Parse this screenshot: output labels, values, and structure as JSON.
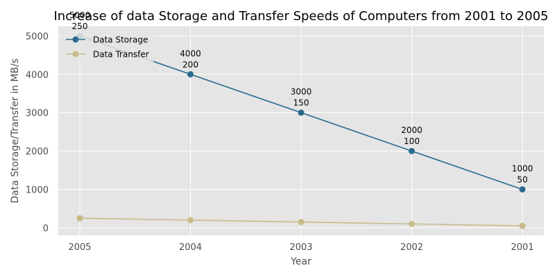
{
  "chart_data": {
    "type": "line",
    "title": "Increase of data Storage and Transfer Speeds of Computers from 2001 to 2005",
    "xlabel": "Year",
    "ylabel": "Data Storage/Transfer in MB/s",
    "categories": [
      "2005",
      "2004",
      "2003",
      "2002",
      "2001"
    ],
    "series": [
      {
        "name": "Data Storage",
        "values": [
          5000,
          4000,
          3000,
          2000,
          1000
        ],
        "color": "#2b6a8e"
      },
      {
        "name": "Data Transfer",
        "values": [
          250,
          200,
          150,
          100,
          50
        ],
        "color": "#c8bb8a"
      }
    ],
    "data_labels": [
      [
        "5000",
        "250"
      ],
      [
        "4000",
        "200"
      ],
      [
        "3000",
        "150"
      ],
      [
        "2000",
        "100"
      ],
      [
        "1000",
        "50"
      ]
    ],
    "ylim": [
      -200,
      5250
    ],
    "yticks": [
      0,
      1000,
      2000,
      3000,
      4000,
      5000
    ],
    "grid": true,
    "legend_position": "top-left",
    "background_color": "#e5e5e5",
    "grid_color": "#ffffff"
  }
}
